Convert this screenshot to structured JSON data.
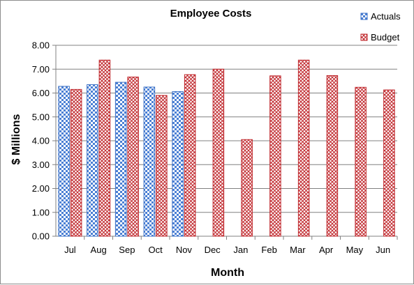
{
  "chart_data": {
    "type": "bar",
    "title": "Employee Costs",
    "xlabel": "Month",
    "ylabel": "$ Millions",
    "categories": [
      "Jul",
      "Aug",
      "Sep",
      "Oct",
      "Nov",
      "Dec",
      "Jan",
      "Feb",
      "Mar",
      "Apr",
      "May",
      "Jun"
    ],
    "series": [
      {
        "name": "Actuals",
        "values": [
          6.28,
          6.35,
          6.45,
          6.25,
          6.06,
          null,
          null,
          null,
          null,
          null,
          null,
          null
        ],
        "color": "#4a7fd4",
        "pattern": "checker"
      },
      {
        "name": "Budget",
        "values": [
          6.15,
          7.38,
          6.67,
          5.9,
          6.77,
          7.0,
          4.05,
          6.72,
          7.38,
          6.73,
          6.24,
          6.13
        ],
        "color": "#c0282d",
        "pattern": "diagonal-crosshatch"
      }
    ],
    "ylim": [
      0,
      8
    ],
    "yticks": [
      "0.00",
      "1.00",
      "2.00",
      "3.00",
      "4.00",
      "5.00",
      "6.00",
      "7.00",
      "8.00"
    ],
    "grid": true,
    "legend_position": "top-right"
  }
}
